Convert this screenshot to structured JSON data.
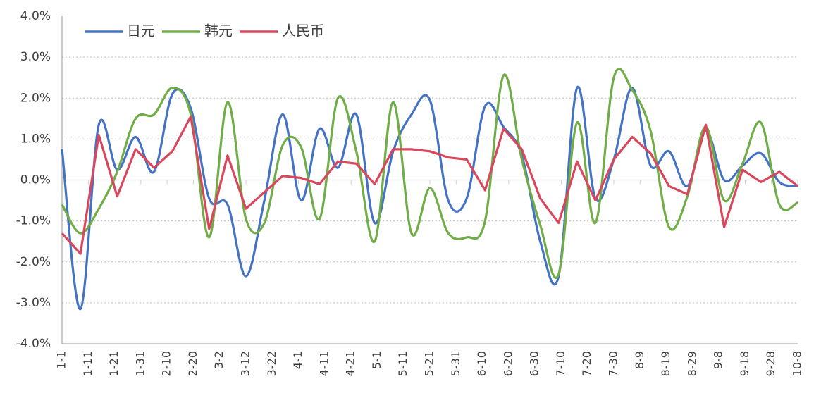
{
  "chart_data": {
    "type": "line",
    "x": [
      0,
      7,
      14,
      21,
      28,
      35,
      42,
      49,
      56,
      63,
      70,
      77,
      84,
      91,
      98,
      105,
      112,
      119,
      126,
      133,
      140,
      147,
      154,
      161,
      168,
      175,
      182,
      189,
      196,
      203,
      210,
      217,
      224,
      231,
      238,
      245,
      252,
      259,
      266,
      273,
      280
    ],
    "xlim": [
      0,
      280
    ],
    "xticks": [
      {
        "value": 0,
        "label": "1-1"
      },
      {
        "value": 10,
        "label": "1-11"
      },
      {
        "value": 20,
        "label": "1-21"
      },
      {
        "value": 30,
        "label": "1-31"
      },
      {
        "value": 40,
        "label": "2-10"
      },
      {
        "value": 50,
        "label": "2-20"
      },
      {
        "value": 60,
        "label": "3-2"
      },
      {
        "value": 70,
        "label": "3-12"
      },
      {
        "value": 80,
        "label": "3-22"
      },
      {
        "value": 90,
        "label": "4-1"
      },
      {
        "value": 100,
        "label": "4-11"
      },
      {
        "value": 110,
        "label": "4-21"
      },
      {
        "value": 120,
        "label": "5-1"
      },
      {
        "value": 130,
        "label": "5-11"
      },
      {
        "value": 140,
        "label": "5-21"
      },
      {
        "value": 150,
        "label": "5-31"
      },
      {
        "value": 160,
        "label": "6-10"
      },
      {
        "value": 170,
        "label": "6-20"
      },
      {
        "value": 180,
        "label": "6-30"
      },
      {
        "value": 190,
        "label": "7-10"
      },
      {
        "value": 200,
        "label": "7-20"
      },
      {
        "value": 210,
        "label": "7-30"
      },
      {
        "value": 220,
        "label": "8-9"
      },
      {
        "value": 230,
        "label": "8-19"
      },
      {
        "value": 240,
        "label": "8-29"
      },
      {
        "value": 250,
        "label": "9-8"
      },
      {
        "value": 260,
        "label": "9-18"
      },
      {
        "value": 270,
        "label": "9-28"
      },
      {
        "value": 280,
        "label": "10-8"
      }
    ],
    "ylim": [
      -4,
      4
    ],
    "yticks": [
      {
        "value": -4,
        "label": "-4.0%"
      },
      {
        "value": -3,
        "label": "-3.0%"
      },
      {
        "value": -2,
        "label": "-2.0%"
      },
      {
        "value": -1,
        "label": "-1.0%"
      },
      {
        "value": 0,
        "label": "0.0%"
      },
      {
        "value": 1,
        "label": "1.0%"
      },
      {
        "value": 2,
        "label": "2.0%"
      },
      {
        "value": 3,
        "label": "3.0%"
      },
      {
        "value": 4,
        "label": "4.0%"
      }
    ],
    "grid": true,
    "legend": "top-left",
    "series": [
      {
        "name": "日元",
        "color": "#4472c4",
        "smooth": true,
        "values": [
          0.75,
          -3.15,
          1.35,
          0.25,
          1.05,
          0.2,
          2.1,
          1.75,
          -0.45,
          -0.6,
          -2.35,
          -0.5,
          1.6,
          -0.5,
          1.25,
          0.3,
          1.6,
          -1.05,
          0.7,
          1.6,
          1.95,
          -0.5,
          -0.45,
          1.8,
          1.3,
          0.6,
          -1.5,
          -2.35,
          2.25,
          -0.45,
          0.5,
          2.25,
          0.35,
          0.7,
          -0.15,
          1.2,
          0.0,
          0.35,
          0.65,
          -0.05,
          -0.15
        ]
      },
      {
        "name": "韩元",
        "color": "#70ad47",
        "smooth": true,
        "values": [
          -0.6,
          -1.3,
          -0.7,
          0.2,
          1.5,
          1.6,
          2.25,
          1.6,
          -1.4,
          1.9,
          -0.95,
          -1.05,
          0.85,
          0.8,
          -0.95,
          2.0,
          0.7,
          -1.5,
          1.9,
          -1.3,
          -0.2,
          -1.3,
          -1.4,
          -1.0,
          2.55,
          0.5,
          -1.1,
          -2.3,
          1.4,
          -1.05,
          2.5,
          2.2,
          1.2,
          -1.15,
          -0.4,
          1.3,
          -0.5,
          0.4,
          1.4,
          -0.6,
          -0.55
        ]
      },
      {
        "name": "人民币",
        "color": "#d9475d",
        "smooth": false,
        "values": [
          -1.3,
          -1.8,
          1.1,
          -0.4,
          0.75,
          0.3,
          0.7,
          1.55,
          -1.2,
          0.6,
          -0.7,
          -0.3,
          0.1,
          0.05,
          -0.1,
          0.45,
          0.4,
          -0.1,
          0.75,
          0.75,
          0.7,
          0.55,
          0.5,
          -0.25,
          1.25,
          0.75,
          -0.45,
          -1.05,
          0.45,
          -0.5,
          0.5,
          1.05,
          0.65,
          -0.15,
          -0.35,
          1.35,
          -1.15,
          0.25,
          -0.05,
          0.2,
          -0.15
        ]
      }
    ]
  }
}
